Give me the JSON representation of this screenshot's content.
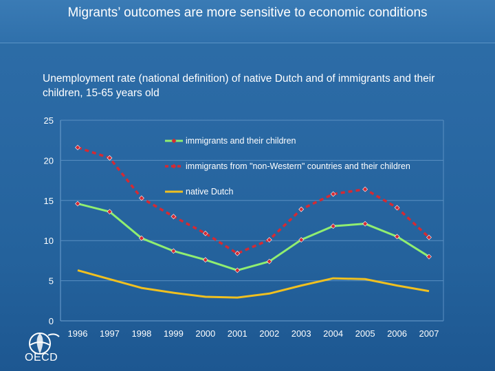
{
  "slide": {
    "title": "Migrants’ outcomes are more sensitive to economic conditions",
    "subtitle": "Unemployment rate (national definition) of native Dutch and of immigrants and their children, 15-65 years old",
    "logo_text": "OECD"
  },
  "colors": {
    "immigrants": "#90ee70",
    "non_western": "#d42a33",
    "native": "#f0c020",
    "marker": "#d42a33"
  },
  "chart_data": {
    "type": "line",
    "title": "",
    "xlabel": "",
    "ylabel": "",
    "ylim": [
      0,
      25
    ],
    "yticks": [
      "0",
      "5",
      "10",
      "15",
      "20",
      "25"
    ],
    "categories": [
      "1996",
      "1997",
      "1998",
      "1999",
      "2000",
      "2001",
      "2002",
      "2003",
      "2004",
      "2005",
      "2006",
      "2007"
    ],
    "grid": true,
    "legend_position": "top-right",
    "series": [
      {
        "name": "immigrants and their children",
        "style": "solid-markers",
        "values": [
          14.6,
          13.6,
          10.3,
          8.7,
          7.6,
          6.3,
          7.4,
          10.1,
          11.8,
          12.1,
          10.5,
          8.0
        ]
      },
      {
        "name": "immigrants from \"non-Western\" countries and their children",
        "style": "dashed",
        "values": [
          21.6,
          20.3,
          15.3,
          13.0,
          10.9,
          8.4,
          10.1,
          13.9,
          15.8,
          16.4,
          14.1,
          10.4
        ]
      },
      {
        "name": "native Dutch",
        "style": "solid",
        "values": [
          6.3,
          5.2,
          4.1,
          3.5,
          3.0,
          2.9,
          3.4,
          4.4,
          5.3,
          5.2,
          4.4,
          3.7
        ]
      }
    ]
  }
}
